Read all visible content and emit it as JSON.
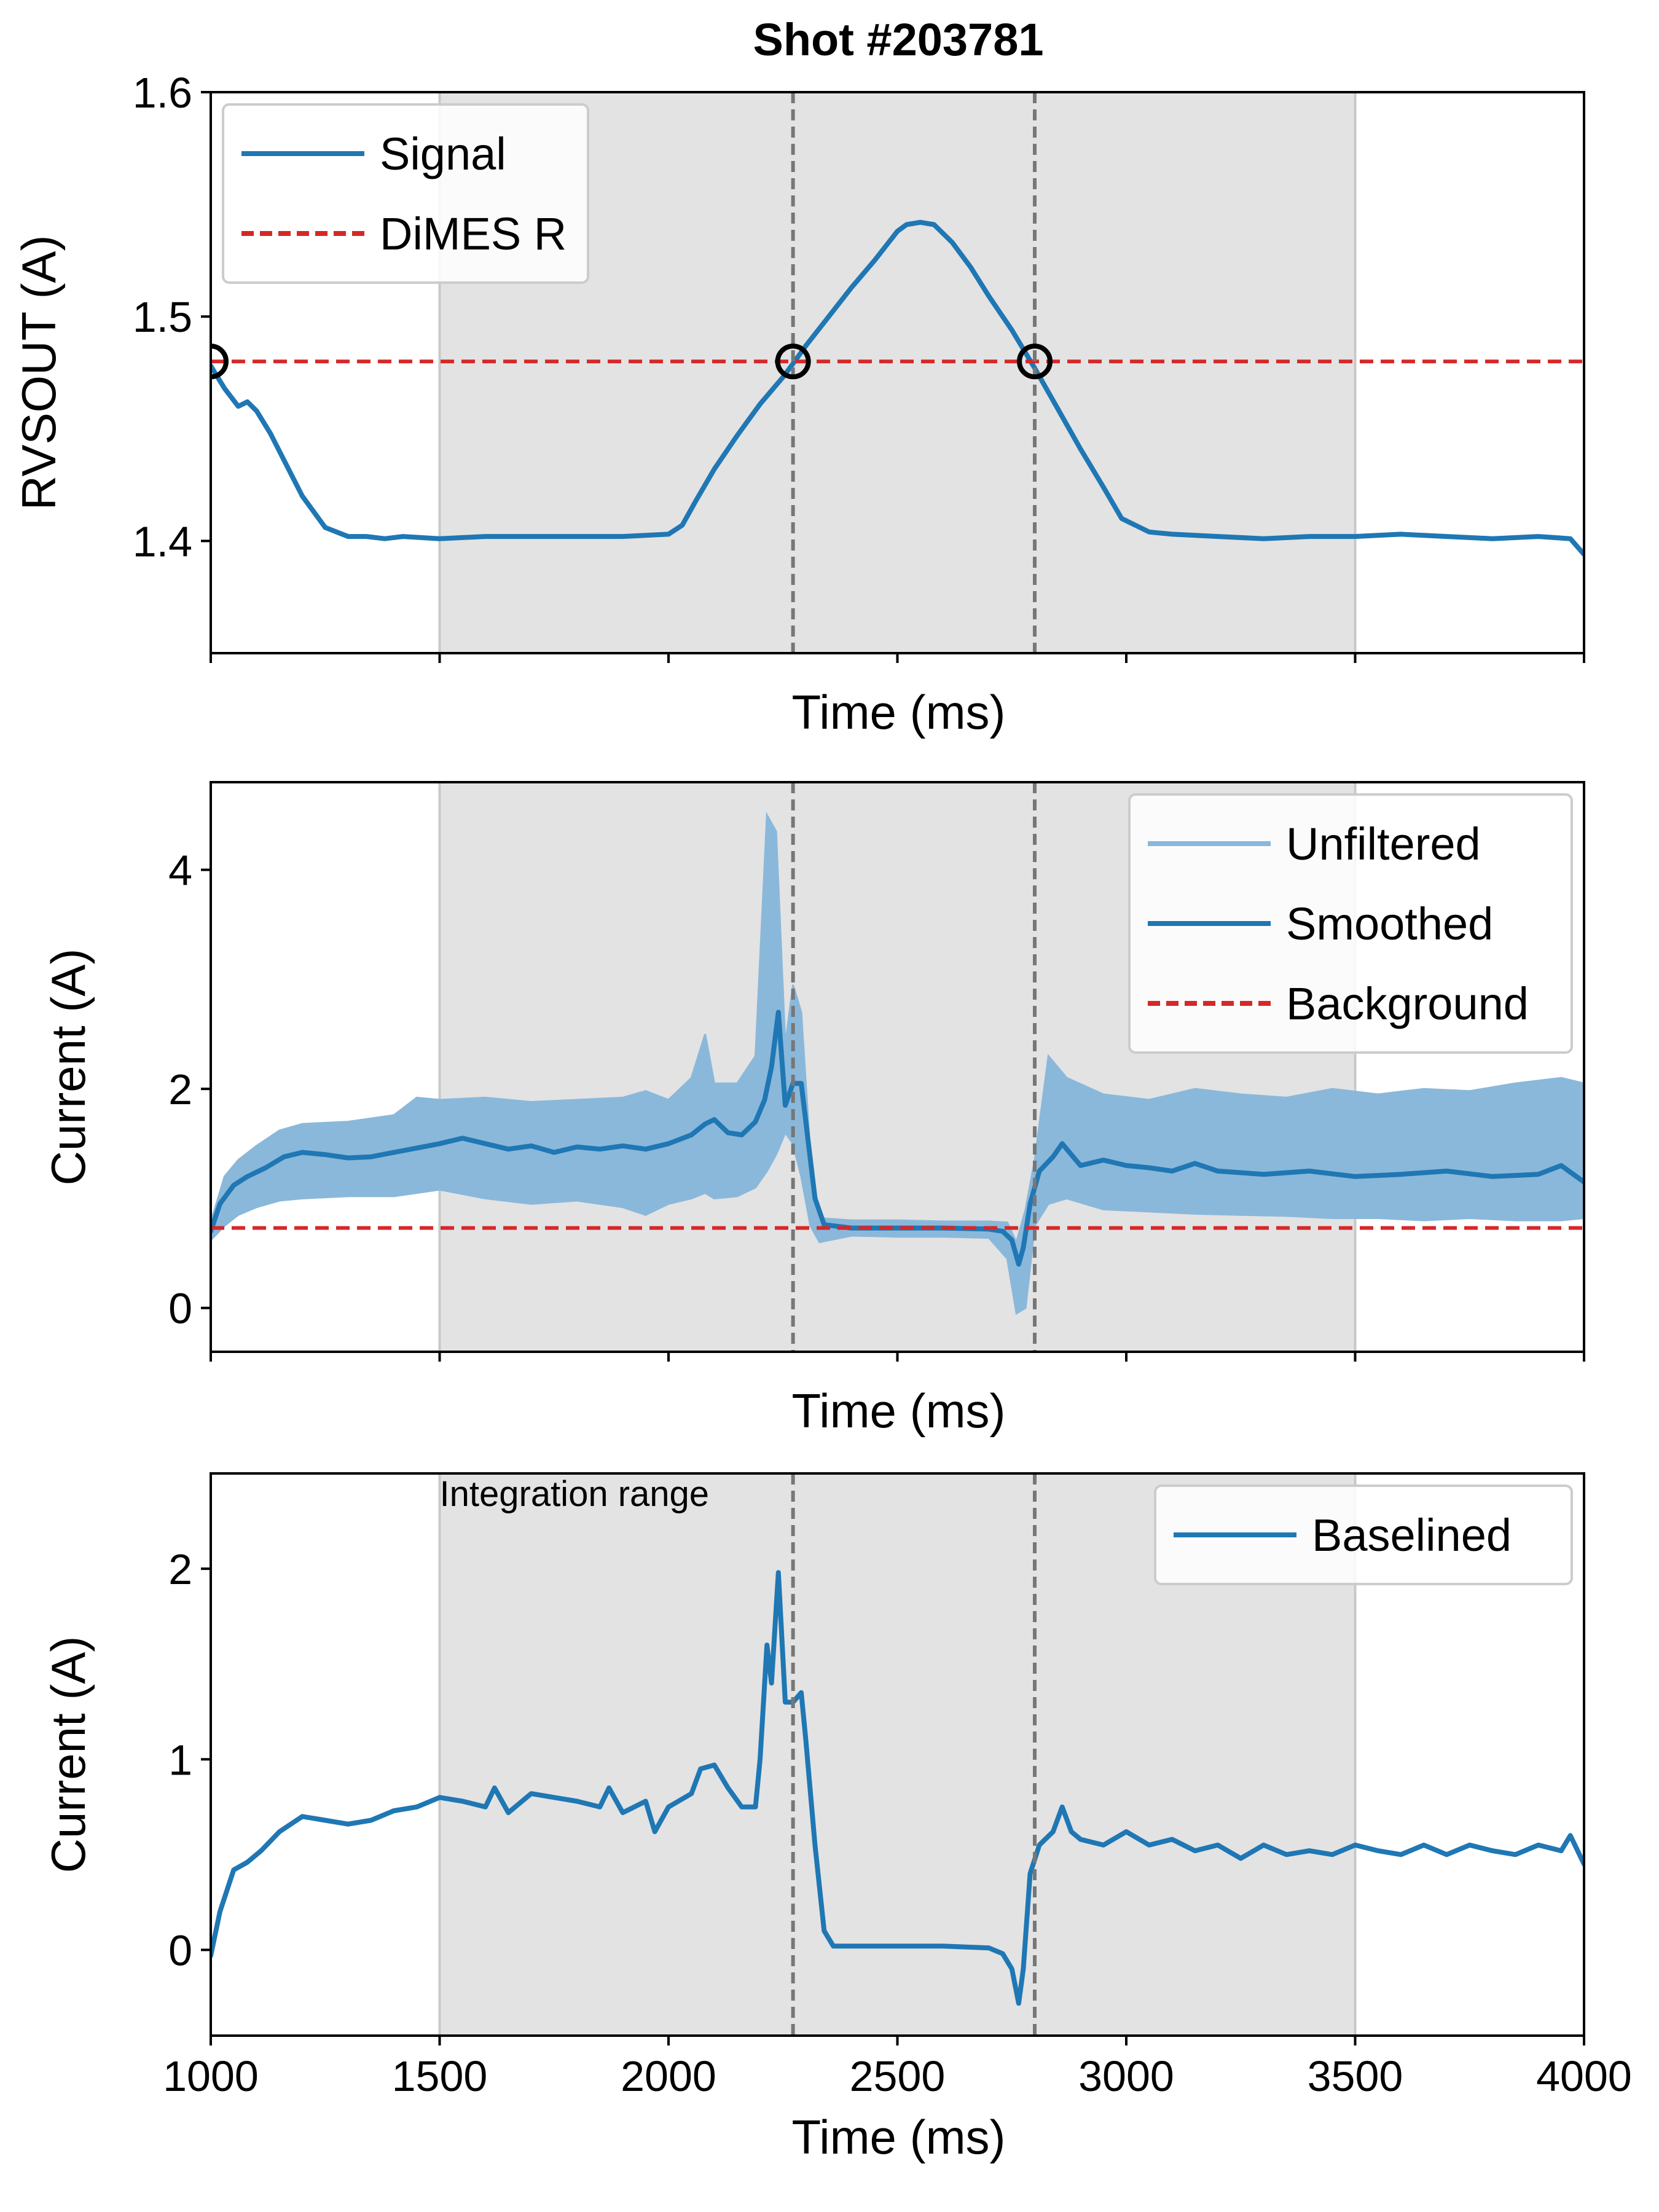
{
  "figure": {
    "title": "Shot #203781"
  },
  "colors": {
    "signal": "#1f77b4",
    "unfiltered": "#8ab8da",
    "threshold": "#d62728",
    "vline": "#777777",
    "shade": "#e3e3e3",
    "marker": "#000000"
  },
  "shared": {
    "shaded_range": [
      1500,
      3500
    ],
    "crossing_times": [
      2272,
      2800
    ],
    "xlim": [
      1000,
      4000
    ],
    "xticks": [
      1000,
      1500,
      2000,
      2500,
      3000,
      3500,
      4000
    ],
    "xlabel": "Time (ms)"
  },
  "chart_data": [
    {
      "id": "rvsout",
      "type": "line",
      "ylabel": "RVSOUT (A)",
      "xlabel": "Time (ms)",
      "ylim": [
        1.35,
        1.6
      ],
      "yticks": [
        1.4,
        1.5,
        1.6
      ],
      "ytick_labels": [
        "1.4",
        "1.5",
        "1.6"
      ],
      "show_xtick_labels": false,
      "legend_position": "upper-left",
      "series": [
        {
          "name": "Signal",
          "style": "solid",
          "x": [
            1000,
            1030,
            1060,
            1080,
            1100,
            1130,
            1160,
            1200,
            1250,
            1300,
            1340,
            1380,
            1420,
            1500,
            1600,
            1700,
            1800,
            1900,
            2000,
            2030,
            2060,
            2100,
            2150,
            2200,
            2250,
            2272,
            2300,
            2350,
            2400,
            2450,
            2500,
            2520,
            2550,
            2580,
            2620,
            2660,
            2700,
            2750,
            2800,
            2850,
            2900,
            2950,
            2990,
            3050,
            3100,
            3200,
            3300,
            3400,
            3500,
            3600,
            3700,
            3800,
            3900,
            3970,
            4000
          ],
          "values": [
            1.478,
            1.468,
            1.46,
            1.462,
            1.458,
            1.448,
            1.436,
            1.42,
            1.406,
            1.402,
            1.402,
            1.401,
            1.402,
            1.401,
            1.402,
            1.402,
            1.402,
            1.402,
            1.403,
            1.407,
            1.418,
            1.432,
            1.447,
            1.461,
            1.473,
            1.479,
            1.487,
            1.5,
            1.513,
            1.525,
            1.538,
            1.541,
            1.542,
            1.541,
            1.533,
            1.522,
            1.509,
            1.494,
            1.477,
            1.459,
            1.441,
            1.424,
            1.41,
            1.404,
            1.403,
            1.402,
            1.401,
            1.402,
            1.402,
            1.403,
            1.402,
            1.401,
            1.402,
            1.401,
            1.394
          ]
        },
        {
          "name": "DiMES R",
          "style": "dashed",
          "constant": 1.48
        }
      ],
      "markers": [
        {
          "x": 1000,
          "y": 1.48
        },
        {
          "x": 2272,
          "y": 1.48
        },
        {
          "x": 2800,
          "y": 1.48
        }
      ]
    },
    {
      "id": "current-raw",
      "type": "line",
      "ylabel": "Current (A)",
      "xlabel": "Time (ms)",
      "ylim": [
        -0.4,
        4.8
      ],
      "yticks": [
        0,
        2,
        4
      ],
      "ytick_labels": [
        "0",
        "2",
        "4"
      ],
      "show_xtick_labels": false,
      "legend_position": "upper-right",
      "series": [
        {
          "name": "Unfiltered",
          "style": "solid-light",
          "band": [
            {
              "x": 1000,
              "lo": 0.62,
              "hi": 0.78
            },
            {
              "x": 1030,
              "lo": 0.75,
              "hi": 1.2
            },
            {
              "x": 1060,
              "lo": 0.85,
              "hi": 1.35
            },
            {
              "x": 1100,
              "lo": 0.92,
              "hi": 1.48
            },
            {
              "x": 1150,
              "lo": 0.98,
              "hi": 1.62
            },
            {
              "x": 1200,
              "lo": 1.0,
              "hi": 1.68
            },
            {
              "x": 1300,
              "lo": 1.02,
              "hi": 1.7
            },
            {
              "x": 1400,
              "lo": 1.02,
              "hi": 1.76
            },
            {
              "x": 1450,
              "lo": 1.05,
              "hi": 1.92
            },
            {
              "x": 1500,
              "lo": 1.08,
              "hi": 1.9
            },
            {
              "x": 1600,
              "lo": 1.0,
              "hi": 1.92
            },
            {
              "x": 1700,
              "lo": 0.95,
              "hi": 1.88
            },
            {
              "x": 1800,
              "lo": 0.98,
              "hi": 1.9
            },
            {
              "x": 1900,
              "lo": 0.92,
              "hi": 1.92
            },
            {
              "x": 1950,
              "lo": 0.85,
              "hi": 1.98
            },
            {
              "x": 2000,
              "lo": 0.95,
              "hi": 1.9
            },
            {
              "x": 2050,
              "lo": 1.0,
              "hi": 2.1
            },
            {
              "x": 2080,
              "lo": 1.05,
              "hi": 2.5
            },
            {
              "x": 2100,
              "lo": 1.0,
              "hi": 2.05
            },
            {
              "x": 2150,
              "lo": 1.02,
              "hi": 2.05
            },
            {
              "x": 2190,
              "lo": 1.1,
              "hi": 2.3
            },
            {
              "x": 2215,
              "lo": 1.25,
              "hi": 4.5
            },
            {
              "x": 2235,
              "lo": 1.4,
              "hi": 4.35
            },
            {
              "x": 2255,
              "lo": 1.6,
              "hi": 2.4
            },
            {
              "x": 2272,
              "lo": 1.5,
              "hi": 2.95
            },
            {
              "x": 2290,
              "lo": 1.2,
              "hi": 2.7
            },
            {
              "x": 2310,
              "lo": 0.75,
              "hi": 1.4
            },
            {
              "x": 2330,
              "lo": 0.6,
              "hi": 0.82
            },
            {
              "x": 2400,
              "lo": 0.66,
              "hi": 0.8
            },
            {
              "x": 2500,
              "lo": 0.65,
              "hi": 0.8
            },
            {
              "x": 2600,
              "lo": 0.65,
              "hi": 0.79
            },
            {
              "x": 2700,
              "lo": 0.64,
              "hi": 0.79
            },
            {
              "x": 2740,
              "lo": 0.45,
              "hi": 0.78
            },
            {
              "x": 2760,
              "lo": -0.05,
              "hi": 0.6
            },
            {
              "x": 2780,
              "lo": 0.0,
              "hi": 0.9
            },
            {
              "x": 2800,
              "lo": 0.75,
              "hi": 1.35
            },
            {
              "x": 2830,
              "lo": 0.95,
              "hi": 2.3
            },
            {
              "x": 2870,
              "lo": 1.0,
              "hi": 2.1
            },
            {
              "x": 2950,
              "lo": 0.9,
              "hi": 1.95
            },
            {
              "x": 3050,
              "lo": 0.88,
              "hi": 1.9
            },
            {
              "x": 3150,
              "lo": 0.86,
              "hi": 2.0
            },
            {
              "x": 3250,
              "lo": 0.85,
              "hi": 1.95
            },
            {
              "x": 3350,
              "lo": 0.84,
              "hi": 1.92
            },
            {
              "x": 3450,
              "lo": 0.82,
              "hi": 2.0
            },
            {
              "x": 3550,
              "lo": 0.82,
              "hi": 1.95
            },
            {
              "x": 3650,
              "lo": 0.8,
              "hi": 2.0
            },
            {
              "x": 3750,
              "lo": 0.82,
              "hi": 1.98
            },
            {
              "x": 3850,
              "lo": 0.8,
              "hi": 2.05
            },
            {
              "x": 3950,
              "lo": 0.8,
              "hi": 2.1
            },
            {
              "x": 4000,
              "lo": 0.82,
              "hi": 2.05
            }
          ]
        },
        {
          "name": "Smoothed",
          "style": "solid",
          "x": [
            1000,
            1020,
            1050,
            1080,
            1120,
            1160,
            1200,
            1250,
            1300,
            1350,
            1400,
            1450,
            1500,
            1550,
            1600,
            1650,
            1700,
            1750,
            1800,
            1850,
            1900,
            1950,
            2000,
            2050,
            2080,
            2100,
            2130,
            2160,
            2190,
            2210,
            2225,
            2240,
            2255,
            2272,
            2290,
            2300,
            2320,
            2340,
            2400,
            2500,
            2600,
            2700,
            2730,
            2750,
            2765,
            2775,
            2790,
            2810,
            2840,
            2860,
            2900,
            2950,
            3000,
            3050,
            3100,
            3150,
            3200,
            3300,
            3400,
            3500,
            3600,
            3700,
            3800,
            3900,
            3950,
            4000
          ],
          "values": [
            0.7,
            0.95,
            1.12,
            1.2,
            1.28,
            1.38,
            1.42,
            1.4,
            1.37,
            1.38,
            1.42,
            1.46,
            1.5,
            1.55,
            1.5,
            1.45,
            1.48,
            1.42,
            1.47,
            1.45,
            1.48,
            1.45,
            1.5,
            1.58,
            1.68,
            1.72,
            1.6,
            1.58,
            1.7,
            1.9,
            2.2,
            2.7,
            1.85,
            2.05,
            2.05,
            1.7,
            1.0,
            0.76,
            0.73,
            0.73,
            0.73,
            0.72,
            0.7,
            0.62,
            0.4,
            0.55,
            0.95,
            1.25,
            1.38,
            1.5,
            1.3,
            1.35,
            1.3,
            1.28,
            1.25,
            1.32,
            1.25,
            1.22,
            1.25,
            1.2,
            1.22,
            1.25,
            1.2,
            1.22,
            1.3,
            1.15
          ]
        },
        {
          "name": "Background",
          "style": "dashed",
          "constant": 0.73
        }
      ]
    },
    {
      "id": "current-baselined",
      "type": "line",
      "ylabel": "Current (A)",
      "xlabel": "Time (ms)",
      "ylim": [
        -0.45,
        2.5
      ],
      "yticks": [
        0,
        1,
        2
      ],
      "ytick_labels": [
        "0",
        "1",
        "2"
      ],
      "show_xtick_labels": true,
      "legend_position": "upper-right",
      "annotation": "Integration range",
      "series": [
        {
          "name": "Baselined",
          "style": "solid",
          "x": [
            1000,
            1020,
            1050,
            1080,
            1110,
            1150,
            1200,
            1250,
            1300,
            1350,
            1400,
            1450,
            1500,
            1550,
            1600,
            1620,
            1650,
            1700,
            1750,
            1800,
            1850,
            1870,
            1900,
            1950,
            1970,
            2000,
            2050,
            2070,
            2100,
            2130,
            2160,
            2190,
            2200,
            2215,
            2225,
            2240,
            2255,
            2272,
            2290,
            2300,
            2320,
            2340,
            2360,
            2400,
            2500,
            2600,
            2700,
            2730,
            2750,
            2765,
            2775,
            2790,
            2810,
            2840,
            2860,
            2880,
            2900,
            2950,
            3000,
            3050,
            3100,
            3150,
            3200,
            3250,
            3300,
            3350,
            3400,
            3450,
            3500,
            3550,
            3600,
            3650,
            3700,
            3750,
            3800,
            3850,
            3900,
            3950,
            3970,
            4000
          ],
          "values": [
            -0.03,
            0.2,
            0.42,
            0.46,
            0.52,
            0.62,
            0.7,
            0.68,
            0.66,
            0.68,
            0.73,
            0.75,
            0.8,
            0.78,
            0.75,
            0.85,
            0.72,
            0.82,
            0.8,
            0.78,
            0.75,
            0.85,
            0.72,
            0.78,
            0.62,
            0.75,
            0.82,
            0.95,
            0.97,
            0.85,
            0.75,
            0.75,
            1.0,
            1.6,
            1.4,
            1.98,
            1.3,
            1.3,
            1.35,
            1.1,
            0.55,
            0.1,
            0.02,
            0.02,
            0.02,
            0.02,
            0.01,
            -0.02,
            -0.1,
            -0.28,
            -0.1,
            0.4,
            0.55,
            0.62,
            0.75,
            0.62,
            0.58,
            0.55,
            0.62,
            0.55,
            0.58,
            0.52,
            0.55,
            0.48,
            0.55,
            0.5,
            0.52,
            0.5,
            0.55,
            0.52,
            0.5,
            0.55,
            0.5,
            0.55,
            0.52,
            0.5,
            0.55,
            0.52,
            0.6,
            0.45
          ]
        }
      ]
    }
  ]
}
